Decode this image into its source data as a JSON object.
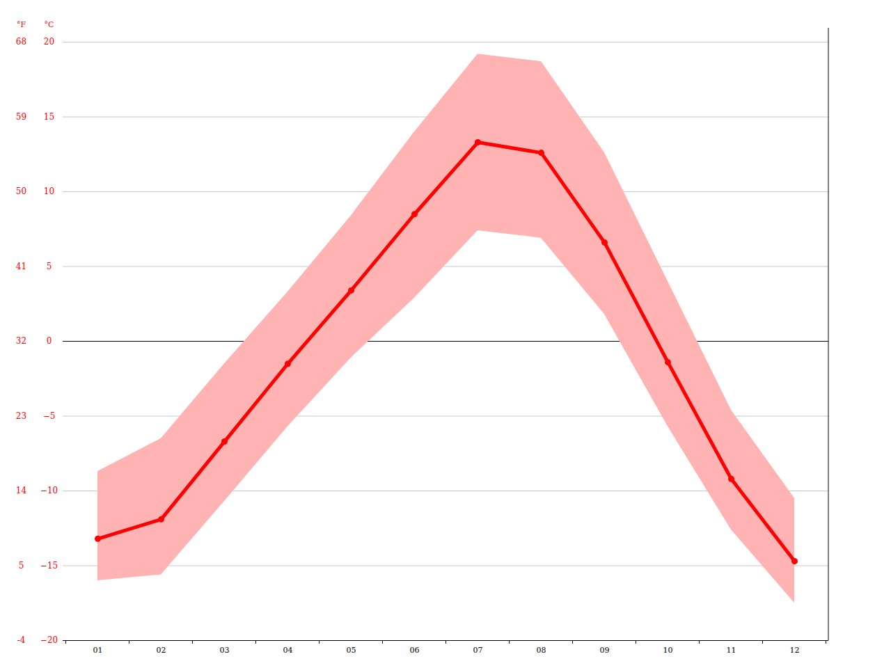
{
  "chart_data": {
    "type": "line",
    "categories": [
      "01",
      "02",
      "03",
      "04",
      "05",
      "06",
      "07",
      "08",
      "09",
      "10",
      "11",
      "12"
    ],
    "values": [
      -13.2,
      -11.9,
      -6.7,
      -1.5,
      3.4,
      8.5,
      13.3,
      12.6,
      6.6,
      -1.4,
      -9.2,
      -14.7
    ],
    "range_low": [
      -16.0,
      -15.6,
      -10.7,
      -5.7,
      -1.1,
      2.9,
      7.4,
      6.9,
      1.8,
      -5.7,
      -12.6,
      -17.5
    ],
    "range_high": [
      -8.7,
      -6.5,
      -1.5,
      3.3,
      8.4,
      14.0,
      19.2,
      18.7,
      12.6,
      4.0,
      -4.6,
      -10.5
    ],
    "color": "#ff0000",
    "marker": "circle",
    "y_label": "°C",
    "ylim": [
      -20,
      20
    ],
    "yticks": [
      -20,
      -15,
      -10,
      -5,
      0,
      5,
      10,
      15,
      20
    ],
    "y2_label": "°F",
    "y2lim": [
      -4,
      68
    ],
    "y2ticks": [
      -4,
      5,
      14,
      23,
      32,
      41,
      50,
      59,
      68
    ],
    "grid": true
  }
}
